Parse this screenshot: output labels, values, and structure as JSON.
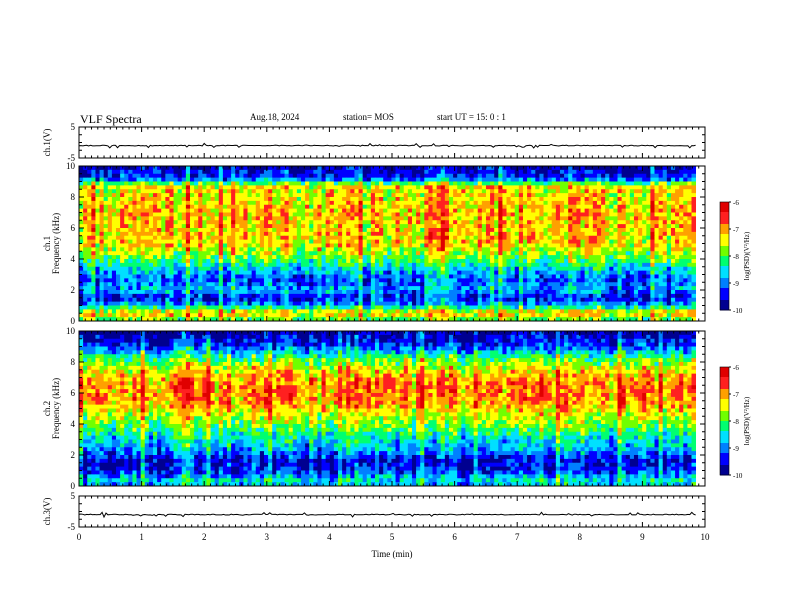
{
  "header": {
    "title": "VLF Spectra",
    "date": "Aug.18, 2024",
    "station": "station= MOS",
    "start": "start  UT =   15: 0  : 1"
  },
  "chart_data": [
    {
      "type": "line",
      "panel": "ch1-waveform",
      "ylabel": "ch.1(V)",
      "ylim": [
        -5,
        5
      ],
      "yticks": [
        "5",
        "-5"
      ],
      "series": [
        {
          "values_note": "flat trace near -1 V",
          "level": -1.0
        }
      ]
    },
    {
      "type": "heatmap",
      "panel": "ch1-spectrogram",
      "ylabel_lines": [
        "ch.1",
        "Frequency (kHz)"
      ],
      "ylim": [
        0,
        10
      ],
      "yticks": [
        "0",
        "2",
        "4",
        "6",
        "8",
        "10"
      ],
      "colorbar": {
        "label": "log(PSD)(V²/Hz)",
        "range": [
          -10,
          -6
        ],
        "ticks": [
          "-6",
          "-7",
          "-8",
          "-9",
          "-10"
        ]
      },
      "profile_kHz": [
        0,
        0.5,
        1,
        1.5,
        2,
        2.5,
        3,
        3.5,
        4,
        5,
        6,
        7,
        8,
        8.7,
        9.2,
        10
      ],
      "profile_level": [
        -8.2,
        -7.2,
        -8.8,
        -9.6,
        -8.8,
        -9.2,
        -9.0,
        -8.5,
        -8.0,
        -7.3,
        -7.3,
        -7.2,
        -7.4,
        -7.4,
        -9.3,
        -9.9
      ]
    },
    {
      "type": "heatmap",
      "panel": "ch2-spectrogram",
      "ylabel_lines": [
        "ch.2",
        "Frequency (kHz)"
      ],
      "ylim": [
        0,
        10
      ],
      "yticks": [
        "0",
        "2",
        "4",
        "6",
        "8",
        "10"
      ],
      "colorbar": {
        "label": "log(PSD)(V²/Hz)",
        "range": [
          -10,
          -6
        ],
        "ticks": [
          "-6",
          "-7",
          "-8",
          "-9",
          "-10"
        ]
      },
      "profile_kHz": [
        0,
        0.4,
        1,
        1.6,
        2.5,
        3,
        3.5,
        4.5,
        5.5,
        6.5,
        7.5,
        8.3,
        9,
        10
      ],
      "profile_level": [
        -8.8,
        -8.6,
        -9.4,
        -9.6,
        -8.8,
        -8.6,
        -8.2,
        -7.6,
        -7.0,
        -6.9,
        -7.4,
        -8.2,
        -9.3,
        -9.9
      ]
    },
    {
      "type": "line",
      "panel": "ch3-waveform",
      "ylabel": "ch.3(V)",
      "ylim": [
        -5,
        5
      ],
      "yticks": [
        "5",
        "-5"
      ],
      "series": [
        {
          "values_note": "flat trace near -1 V",
          "level": -1.0
        }
      ]
    }
  ],
  "xaxis": {
    "label": "Time  (min)",
    "xlim": [
      0,
      10
    ],
    "ticks": [
      "0",
      "1",
      "2",
      "3",
      "4",
      "5",
      "6",
      "7",
      "8",
      "9",
      "10"
    ],
    "data_end_min": 9.85
  },
  "colors": [
    "#000090",
    "#0000ff",
    "#0080ff",
    "#00e0ff",
    "#00ff70",
    "#70ff00",
    "#ffff00",
    "#ffa000",
    "#ff2020",
    "#e00000"
  ]
}
